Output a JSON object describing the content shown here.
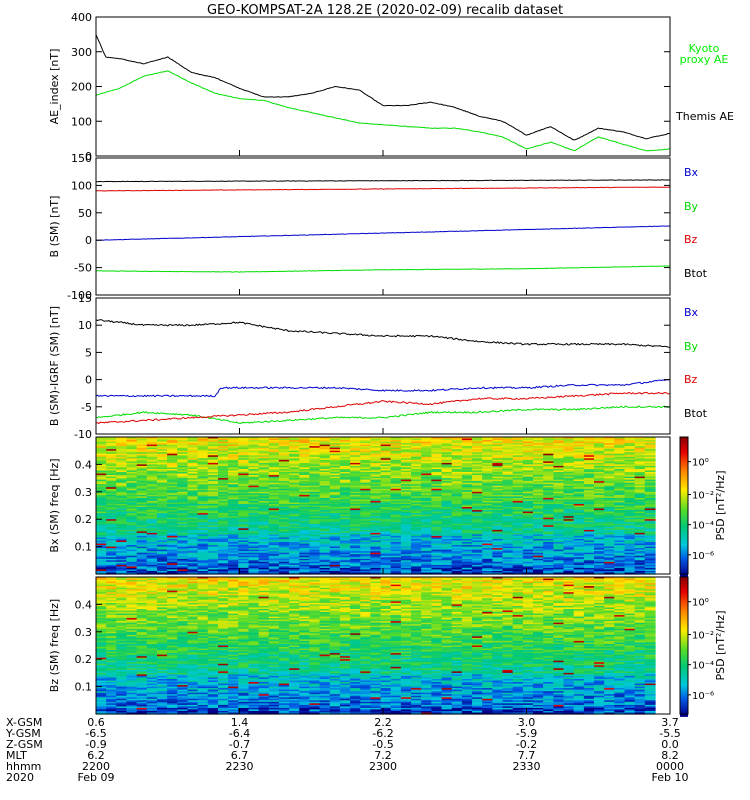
{
  "title": "GEO-KOMPSAT-2A 128.2E (2020-02-09) recalib dataset",
  "colors": {
    "black": "#000000",
    "green": "#00dd00",
    "blue": "#0000cc",
    "red": "#dd0000",
    "kyoto_green": "#00ee00"
  },
  "chart_data": [
    {
      "type": "line",
      "panel": "ae",
      "ylabel": "AE_index [nT]",
      "ylim": [
        0,
        400
      ],
      "yticks": [
        0,
        100,
        200,
        300,
        400
      ],
      "x_range_hhmm": [
        "2200",
        "2400"
      ],
      "series": [
        {
          "name": "Kyoto proxy AE",
          "color": "green",
          "x": [
            0,
            5,
            10,
            15,
            20,
            25,
            30,
            35,
            40,
            45,
            50,
            55,
            60,
            65,
            70,
            75,
            80,
            85,
            90,
            95,
            100,
            105,
            110,
            115,
            120
          ],
          "values": [
            175,
            195,
            230,
            245,
            210,
            180,
            165,
            160,
            140,
            125,
            110,
            95,
            90,
            85,
            80,
            80,
            70,
            55,
            20,
            40,
            15,
            55,
            35,
            15,
            20
          ]
        },
        {
          "name": "Themis AE",
          "color": "black",
          "x": [
            0,
            2,
            5,
            10,
            15,
            20,
            25,
            30,
            35,
            40,
            45,
            50,
            55,
            60,
            65,
            70,
            75,
            80,
            85,
            90,
            95,
            100,
            105,
            110,
            115,
            120
          ],
          "values": [
            350,
            285,
            280,
            265,
            285,
            240,
            225,
            195,
            170,
            170,
            180,
            200,
            190,
            145,
            145,
            155,
            140,
            115,
            100,
            60,
            85,
            45,
            80,
            70,
            50,
            65
          ]
        }
      ],
      "legend": [
        {
          "label": "Kyoto",
          "color": "kyoto_green"
        },
        {
          "label": "proxy AE",
          "color": "kyoto_green"
        },
        {
          "label": "Themis AE",
          "color": "black"
        }
      ]
    },
    {
      "type": "line",
      "panel": "b_sm",
      "ylabel": "B (SM) [nT]",
      "ylim": [
        -100,
        150
      ],
      "yticks": [
        -100,
        -50,
        0,
        50,
        100,
        150
      ],
      "series": [
        {
          "name": "Bx",
          "color": "black",
          "x": [
            0,
            120
          ],
          "values": [
            107,
            110
          ]
        },
        {
          "name": "By",
          "color": "green",
          "x": [
            0,
            30,
            60,
            90,
            120
          ],
          "values": [
            -56,
            -58,
            -54,
            -52,
            -47
          ]
        },
        {
          "name": "Bz",
          "color": "red",
          "x": [
            0,
            120
          ],
          "values": [
            90,
            97
          ]
        },
        {
          "name": "Btot",
          "color": "blue",
          "x": [
            0,
            120
          ],
          "values": [
            0,
            26
          ]
        }
      ],
      "legend": [
        {
          "label": "Bx",
          "color": "blue"
        },
        {
          "label": "By",
          "color": "green"
        },
        {
          "label": "Bz",
          "color": "red"
        },
        {
          "label": "Btot",
          "color": "black"
        }
      ]
    },
    {
      "type": "line",
      "panel": "b_sm_igrf",
      "ylabel": "B (SM)-IGRF (SM) [nT]",
      "ylim": [
        -10,
        15
      ],
      "yticks": [
        -10,
        -5,
        0,
        5,
        10,
        15
      ],
      "series": [
        {
          "name": "Bx",
          "color": "black",
          "x": [
            0,
            10,
            20,
            30,
            40,
            50,
            60,
            70,
            80,
            90,
            100,
            110,
            120
          ],
          "values": [
            11,
            10,
            10,
            10.5,
            9,
            8.5,
            8,
            8,
            7,
            6.5,
            6.5,
            6.5,
            6
          ]
        },
        {
          "name": "By",
          "color": "green",
          "x": [
            0,
            10,
            20,
            30,
            40,
            50,
            60,
            70,
            80,
            90,
            100,
            110,
            120
          ],
          "values": [
            -7,
            -6,
            -6.5,
            -8,
            -7.5,
            -7,
            -7,
            -6,
            -6,
            -5.5,
            -5.5,
            -5,
            -5
          ]
        },
        {
          "name": "Bz",
          "color": "red",
          "x": [
            0,
            10,
            20,
            30,
            40,
            50,
            60,
            70,
            80,
            90,
            100,
            110,
            120
          ],
          "values": [
            -8,
            -7.5,
            -7,
            -6.5,
            -6,
            -5,
            -4,
            -4.5,
            -3.5,
            -3.5,
            -3,
            -2.5,
            -2.5
          ]
        },
        {
          "name": "Btot",
          "color": "blue",
          "x": [
            0,
            10,
            20,
            25,
            26,
            30,
            40,
            50,
            60,
            70,
            80,
            90,
            100,
            110,
            120
          ],
          "values": [
            -3,
            -3,
            -3,
            -3,
            -1.5,
            -1.5,
            -1.5,
            -1.5,
            -2,
            -2,
            -1.5,
            -1.5,
            -1,
            -1,
            0
          ]
        }
      ],
      "legend": [
        {
          "label": "Bx",
          "color": "blue"
        },
        {
          "label": "By",
          "color": "green"
        },
        {
          "label": "Bz",
          "color": "red"
        },
        {
          "label": "Btot",
          "color": "black"
        }
      ]
    },
    {
      "type": "heatmap",
      "panel": "bx_spec",
      "ylabel": "Bx (SM) freq [Hz]",
      "ylim": [
        0,
        0.5
      ],
      "yticks": [
        0.1,
        0.2,
        0.3,
        0.4
      ],
      "colorbar": {
        "label": "PSD [nT²/Hz]",
        "ticks": [
          "10⁰",
          "10⁻²",
          "10⁻⁴",
          "10⁻⁶"
        ]
      }
    },
    {
      "type": "heatmap",
      "panel": "bz_spec",
      "ylabel": "Bz (SM) freq [Hz]",
      "ylim": [
        0,
        0.5
      ],
      "yticks": [
        0.1,
        0.2,
        0.3,
        0.4
      ],
      "colorbar": {
        "label": "PSD [nT²/Hz]",
        "ticks": [
          "10⁰",
          "10⁻²",
          "10⁻⁴",
          "10⁻⁶"
        ]
      }
    }
  ],
  "x_axis": {
    "row_labels": [
      "X-GSM",
      "Y-GSM",
      "Z-GSM",
      "MLT",
      "hhmm",
      "2020"
    ],
    "columns": [
      {
        "rows": [
          "0.6",
          "-6.5",
          "-0.9",
          "6.2",
          "2200",
          "Feb 09"
        ]
      },
      {
        "rows": [
          "1.4",
          "-6.4",
          "-0.7",
          "6.7",
          "2230",
          ""
        ]
      },
      {
        "rows": [
          "2.2",
          "-6.2",
          "-0.5",
          "7.2",
          "2300",
          ""
        ]
      },
      {
        "rows": [
          "3.0",
          "-5.9",
          "-0.2",
          "7.7",
          "2330",
          ""
        ]
      },
      {
        "rows": [
          "3.7",
          "-5.5",
          "0.0",
          "8.2",
          "0000",
          "Feb 10"
        ]
      }
    ]
  }
}
